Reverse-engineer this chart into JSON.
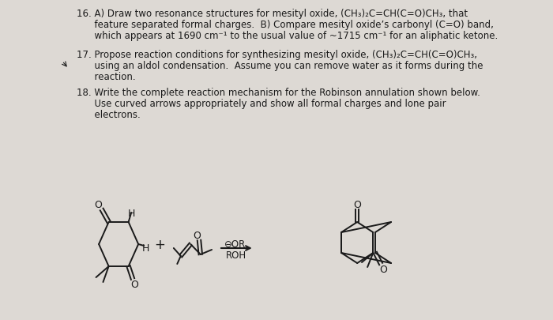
{
  "background_color": "#ddd9d4",
  "text_color": "#1a1a1a",
  "fig_width": 7.0,
  "fig_height": 4.06,
  "q16_line1": "16. A) Draw two resonance structures for mesityl oxide, (CH₃)₂C=CH(C=O)CH₃, that",
  "q16_line2": "      feature separated formal charges.  B) Compare mesityl oxide’s carbonyl (C=O) band,",
  "q16_line3": "      which appears at 1690 cm⁻¹ to the usual value of ~1715 cm⁻¹ for an aliphatic ketone.",
  "q17_line1": "17. Propose reaction conditions for synthesizing mesityl oxide, (CH₃)₂C=CH(C=O)CH₃,",
  "q17_line2": "      using an aldol condensation.  Assume you can remove water as it forms during the",
  "q17_line3": "      reaction.",
  "q18_line1": "18. Write the complete reaction mechanism for the Robinson annulation shown below.",
  "q18_line2": "      Use curved arrows appropriately and show all formal charges and lone pair",
  "q18_line3": "      electrons.",
  "font_size": 8.5,
  "lw": 1.4,
  "line_color": "#1a1a1a"
}
